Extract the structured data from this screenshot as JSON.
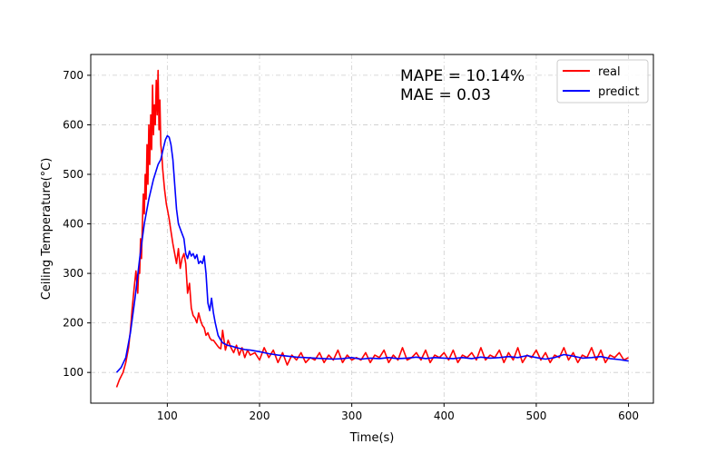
{
  "chart_data": {
    "type": "line",
    "xlabel": "Time(s)",
    "ylabel": "Ceiling Temperature(°C)",
    "xlim": [
      17,
      627
    ],
    "ylim": [
      38,
      742
    ],
    "xticks": [
      100,
      200,
      300,
      400,
      500,
      600
    ],
    "yticks": [
      100,
      200,
      300,
      400,
      500,
      600,
      700
    ],
    "grid": true,
    "legend_position": "top-right",
    "annotations": [
      "MAPE = 10.14%",
      "MAE = 0.03"
    ],
    "series": [
      {
        "name": "real",
        "color": "#ff0000",
        "x": [
          45,
          48,
          52,
          55,
          58,
          60,
          62,
          64,
          66,
          68,
          69,
          70,
          71,
          72,
          73,
          74,
          75,
          76,
          77,
          78,
          79,
          80,
          81,
          82,
          83,
          84,
          85,
          86,
          87,
          88,
          89,
          90,
          91,
          92,
          93,
          94,
          95,
          96,
          97,
          98,
          99,
          100,
          102,
          104,
          106,
          108,
          110,
          112,
          114,
          116,
          118,
          120,
          122,
          124,
          126,
          128,
          130,
          132,
          134,
          136,
          138,
          140,
          142,
          144,
          146,
          148,
          150,
          152,
          154,
          156,
          158,
          160,
          163,
          166,
          169,
          172,
          175,
          178,
          181,
          184,
          187,
          190,
          195,
          200,
          205,
          210,
          215,
          220,
          225,
          230,
          235,
          240,
          245,
          250,
          255,
          260,
          265,
          270,
          275,
          280,
          285,
          290,
          295,
          300,
          305,
          310,
          315,
          320,
          325,
          330,
          335,
          340,
          345,
          350,
          355,
          360,
          365,
          370,
          375,
          380,
          385,
          390,
          395,
          400,
          405,
          410,
          415,
          420,
          425,
          430,
          435,
          440,
          445,
          450,
          455,
          460,
          465,
          470,
          475,
          480,
          485,
          490,
          495,
          500,
          505,
          510,
          515,
          520,
          525,
          530,
          535,
          540,
          545,
          550,
          555,
          560,
          565,
          570,
          575,
          580,
          585,
          590,
          595,
          600
        ],
        "y": [
          70,
          85,
          100,
          120,
          150,
          185,
          230,
          270,
          305,
          260,
          310,
          300,
          370,
          330,
          400,
          460,
          420,
          500,
          450,
          560,
          480,
          600,
          520,
          620,
          550,
          680,
          580,
          640,
          600,
          690,
          620,
          710,
          590,
          650,
          560,
          540,
          510,
          490,
          470,
          455,
          440,
          430,
          410,
          385,
          360,
          340,
          320,
          350,
          310,
          330,
          340,
          320,
          260,
          280,
          230,
          215,
          210,
          200,
          220,
          205,
          195,
          190,
          175,
          180,
          170,
          165,
          165,
          160,
          155,
          150,
          148,
          185,
          145,
          165,
          150,
          140,
          155,
          135,
          150,
          130,
          145,
          135,
          140,
          125,
          150,
          130,
          145,
          120,
          140,
          115,
          135,
          125,
          140,
          120,
          130,
          125,
          140,
          120,
          135,
          125,
          145,
          120,
          135,
          125,
          130,
          125,
          140,
          120,
          135,
          130,
          145,
          120,
          135,
          125,
          150,
          125,
          130,
          140,
          125,
          145,
          120,
          135,
          130,
          140,
          125,
          145,
          120,
          135,
          130,
          140,
          125,
          150,
          125,
          135,
          130,
          145,
          120,
          140,
          125,
          150,
          120,
          135,
          130,
          145,
          125,
          140,
          120,
          135,
          130,
          150,
          125,
          140,
          120,
          135,
          130,
          150,
          125,
          145,
          120,
          135,
          130,
          140,
          125,
          130
        ]
      },
      {
        "name": "predict",
        "color": "#0000ff",
        "x": [
          45,
          50,
          55,
          60,
          65,
          70,
          75,
          80,
          85,
          90,
          93,
          96,
          98,
          100,
          102,
          104,
          106,
          108,
          110,
          112,
          115,
          118,
          120,
          122,
          124,
          126,
          128,
          130,
          132,
          134,
          136,
          138,
          140,
          142,
          144,
          146,
          148,
          150,
          152,
          155,
          158,
          160,
          165,
          170,
          175,
          180,
          185,
          190,
          200,
          210,
          220,
          230,
          240,
          250,
          260,
          270,
          280,
          290,
          300,
          310,
          320,
          330,
          340,
          350,
          360,
          370,
          380,
          390,
          400,
          410,
          420,
          430,
          440,
          450,
          460,
          470,
          480,
          490,
          500,
          510,
          520,
          530,
          540,
          550,
          560,
          570,
          580,
          590,
          600
        ],
        "y": [
          100,
          110,
          130,
          180,
          250,
          330,
          400,
          450,
          490,
          520,
          530,
          555,
          570,
          578,
          575,
          560,
          530,
          480,
          430,
          400,
          385,
          370,
          340,
          330,
          345,
          335,
          340,
          330,
          338,
          320,
          325,
          320,
          335,
          300,
          240,
          225,
          250,
          220,
          200,
          175,
          165,
          160,
          155,
          153,
          150,
          148,
          146,
          145,
          142,
          138,
          135,
          133,
          131,
          130,
          129,
          128,
          127,
          128,
          130,
          127,
          129,
          128,
          130,
          128,
          129,
          131,
          128,
          130,
          129,
          128,
          130,
          128,
          131,
          129,
          130,
          132,
          130,
          134,
          130,
          127,
          130,
          136,
          133,
          129,
          130,
          132,
          128,
          126,
          123
        ]
      }
    ]
  }
}
